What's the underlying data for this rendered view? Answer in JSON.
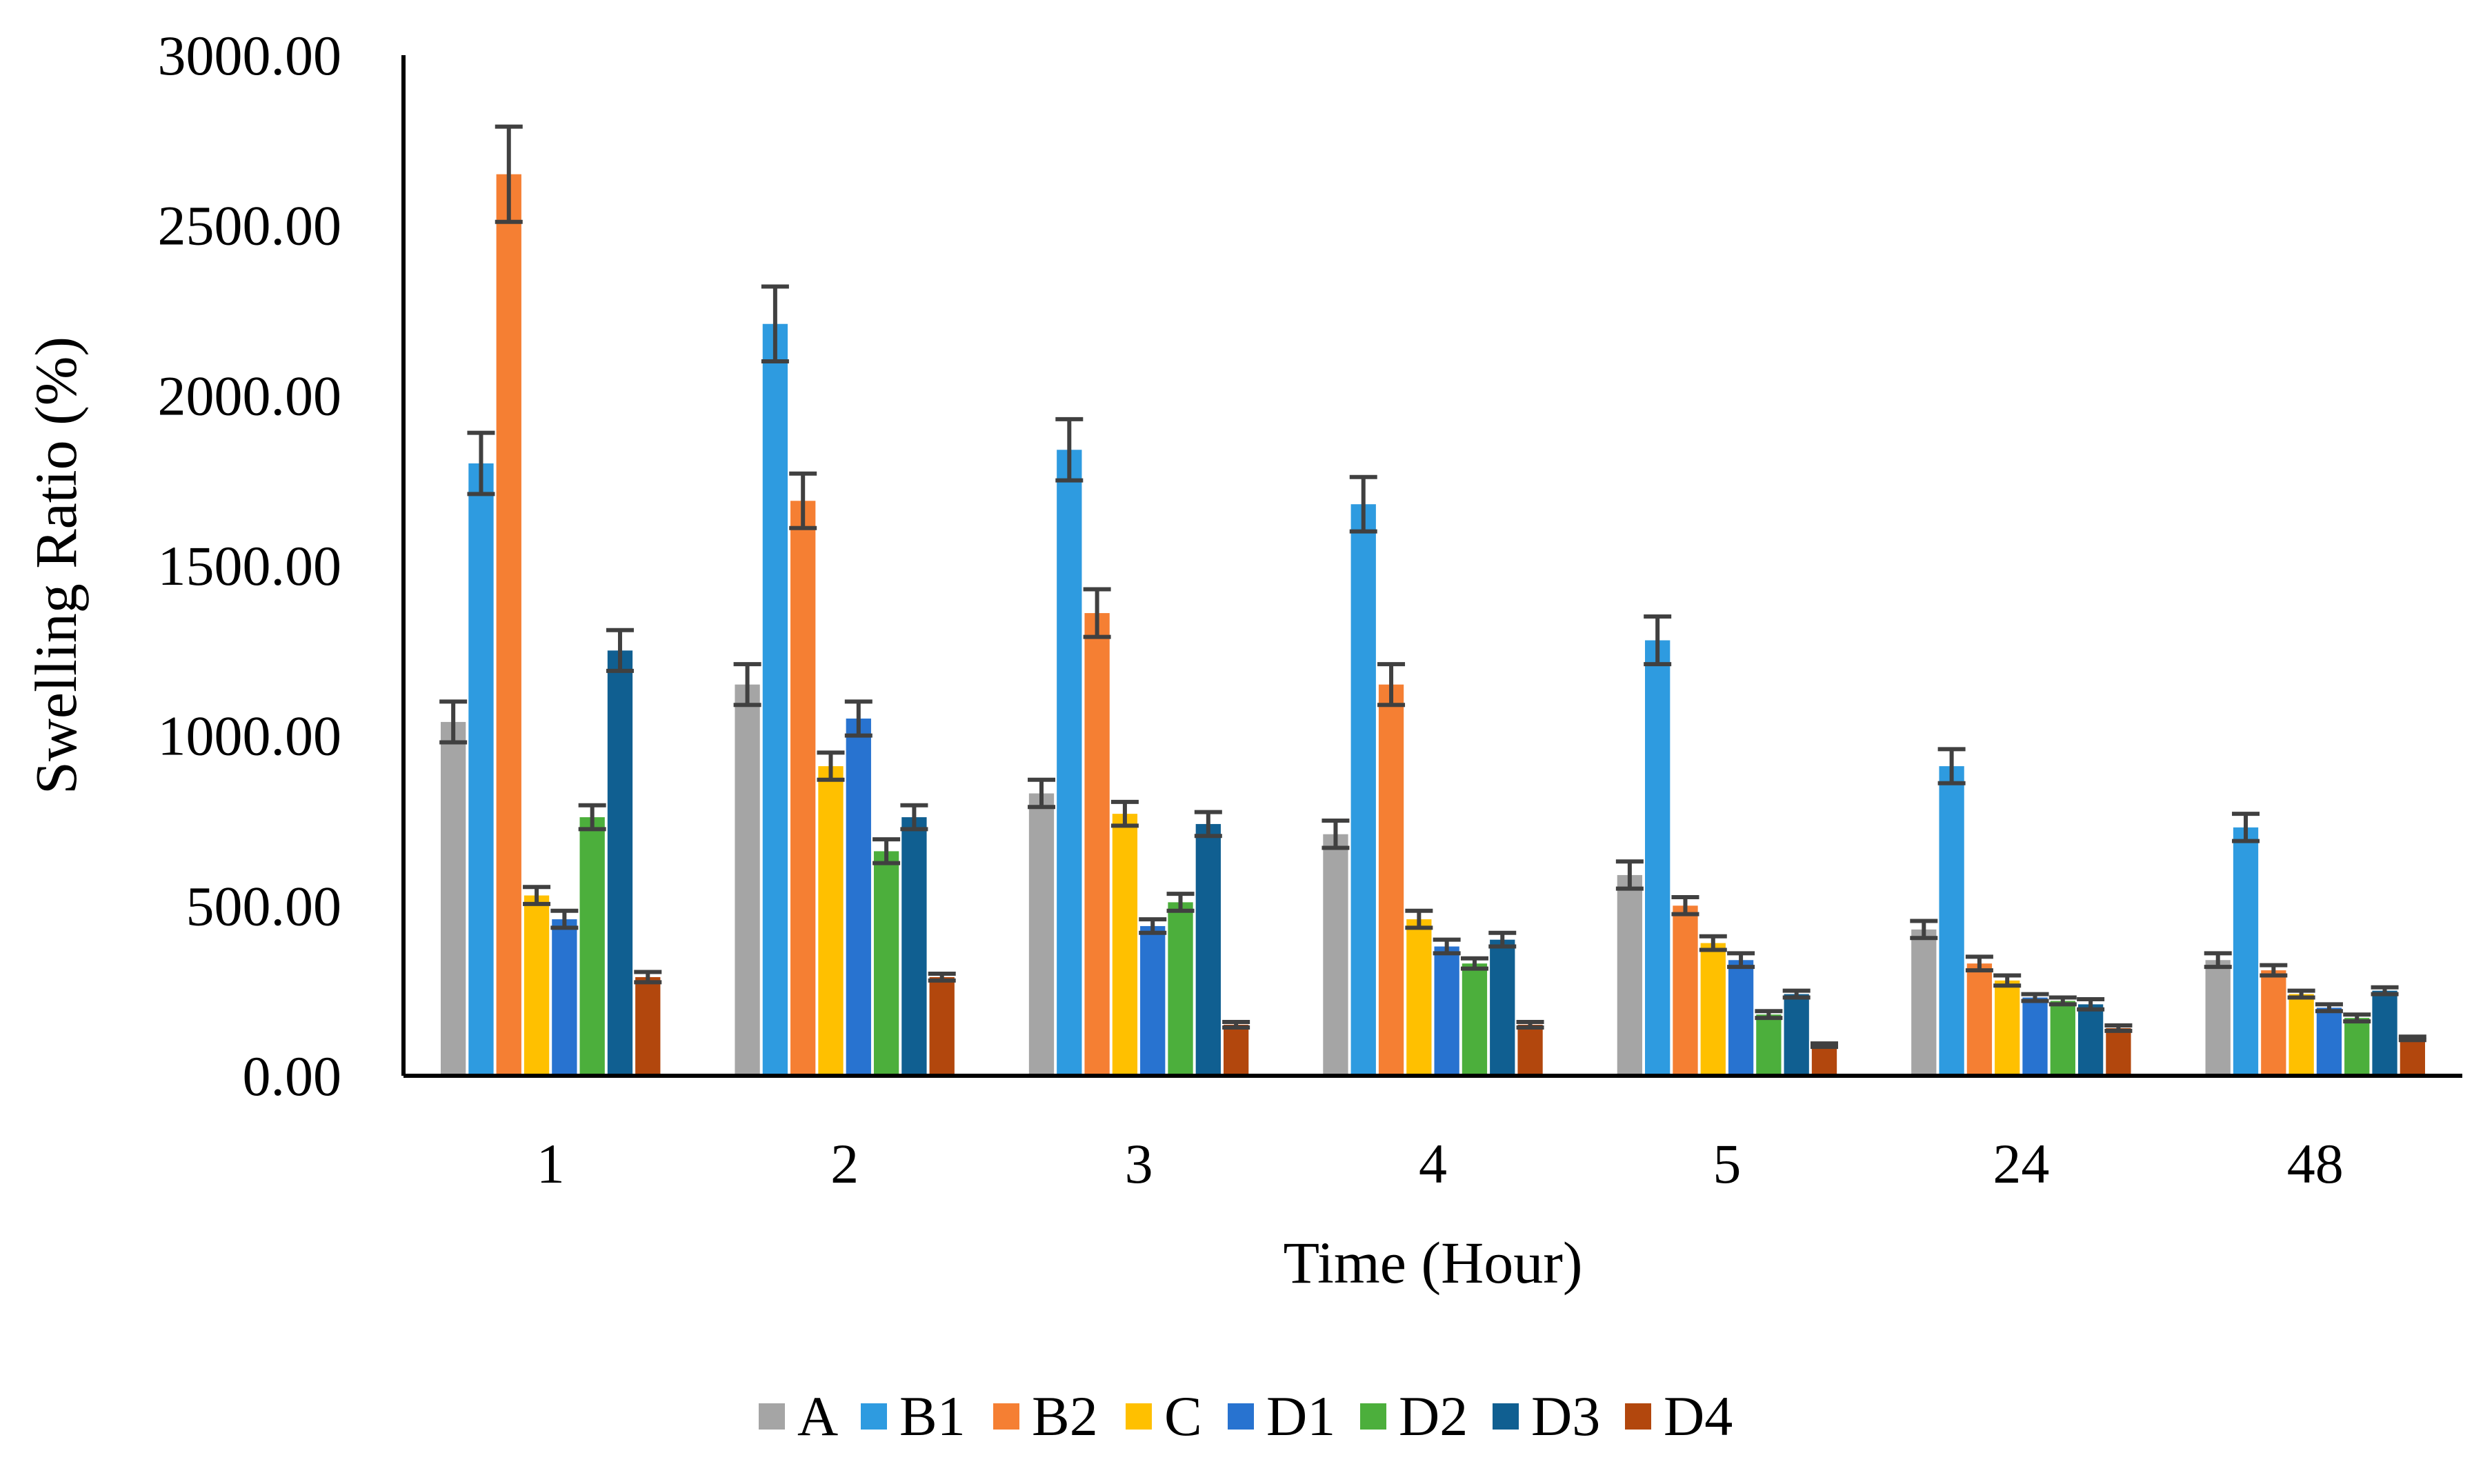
{
  "chart_data": {
    "type": "bar",
    "title": "",
    "xlabel": "Time (Hour)",
    "ylabel": "Swelling Ratio (%)",
    "ylim": [
      0,
      3000
    ],
    "yticks": [
      "0.00",
      "500.00",
      "1000.00",
      "1500.00",
      "2000.00",
      "2500.00",
      "3000.00"
    ],
    "categories": [
      "1",
      "2",
      "3",
      "4",
      "5",
      "24",
      "48"
    ],
    "legend_position": "bottom",
    "series": [
      {
        "name": "A",
        "color": "#A5A5A5",
        "values": [
          1040,
          1150,
          830,
          710,
          590,
          430,
          340
        ],
        "errors": [
          60,
          60,
          40,
          40,
          40,
          25,
          20
        ]
      },
      {
        "name": "B1",
        "color": "#2E9BE0",
        "values": [
          1800,
          2210,
          1840,
          1680,
          1280,
          910,
          730
        ],
        "errors": [
          90,
          110,
          90,
          80,
          70,
          50,
          40
        ]
      },
      {
        "name": "B2",
        "color": "#F57F33",
        "values": [
          2650,
          1690,
          1360,
          1150,
          500,
          330,
          310
        ],
        "errors": [
          140,
          80,
          70,
          60,
          25,
          20,
          15
        ]
      },
      {
        "name": "C",
        "color": "#FFC000",
        "values": [
          530,
          910,
          770,
          460,
          390,
          280,
          240
        ],
        "errors": [
          25,
          40,
          35,
          25,
          20,
          15,
          10
        ]
      },
      {
        "name": "D1",
        "color": "#2873D0",
        "values": [
          460,
          1050,
          440,
          380,
          340,
          230,
          200
        ],
        "errors": [
          25,
          50,
          20,
          20,
          20,
          10,
          10
        ]
      },
      {
        "name": "D2",
        "color": "#4CAF3C",
        "values": [
          760,
          660,
          510,
          330,
          180,
          220,
          170
        ],
        "errors": [
          35,
          35,
          25,
          15,
          10,
          10,
          10
        ]
      },
      {
        "name": "D3",
        "color": "#105F91",
        "values": [
          1250,
          760,
          740,
          400,
          240,
          210,
          250
        ],
        "errors": [
          60,
          35,
          35,
          20,
          10,
          15,
          10
        ]
      },
      {
        "name": "D4",
        "color": "#B2470D",
        "values": [
          290,
          290,
          150,
          150,
          90,
          140,
          110
        ],
        "errors": [
          15,
          10,
          8,
          8,
          5,
          8,
          5
        ]
      }
    ]
  }
}
